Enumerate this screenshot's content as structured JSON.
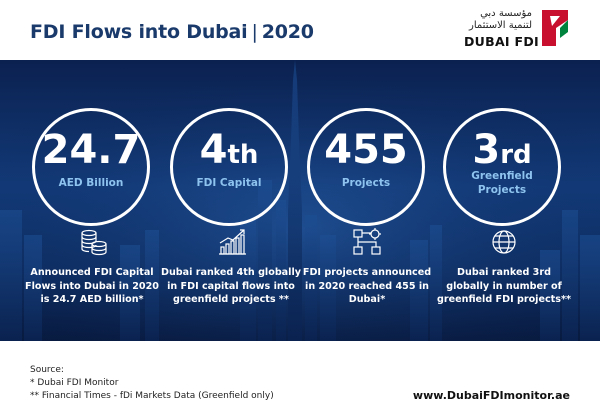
{
  "header": {
    "title": "FDI Flows into Dubai",
    "title_separator": "|",
    "year": "2020",
    "logo": {
      "arabic_line1": "مؤسسة دبي",
      "arabic_line2": "لتنمية الاستثمار",
      "english": "DUBAI FDI",
      "mark_icon": "dubai-fdi-logo-mark",
      "colors": {
        "red": "#c8102e",
        "green": "#00843d"
      }
    }
  },
  "colors": {
    "title_blue": "#1a3a6b",
    "banner_dark": "#0b2150",
    "subtitle_light_blue": "#8ec3ef",
    "white": "#ffffff"
  },
  "stats": [
    {
      "value": "24.7",
      "suffix": "",
      "label": "AED Billion",
      "icon": "coin-stack-icon",
      "description": "Announced FDI Capital Flows into Dubai in 2020 is 24.7 AED billion*"
    },
    {
      "value": "4",
      "suffix": "th",
      "label": "FDI Capital",
      "icon": "bar-chart-growth-icon",
      "description": "Dubai ranked 4th globally in FDI capital flows into greenfield projects **"
    },
    {
      "value": "455",
      "suffix": "",
      "label": "Projects",
      "icon": "project-network-icon",
      "description": "FDI projects announced in 2020 reached 455 in Dubai*"
    },
    {
      "value": "3",
      "suffix": "rd",
      "label": "Greenfield Projects",
      "icon": "globe-icon",
      "description": "Dubai ranked 3rd globally in number of greenfield FDI projects**"
    }
  ],
  "footer": {
    "source_label": "Source:",
    "source_1": "* Dubai FDI Monitor",
    "source_2": "** Financial Times - fDi Markets Data (Greenfield only)",
    "url": "www.DubaiFDImonitor.ae"
  }
}
